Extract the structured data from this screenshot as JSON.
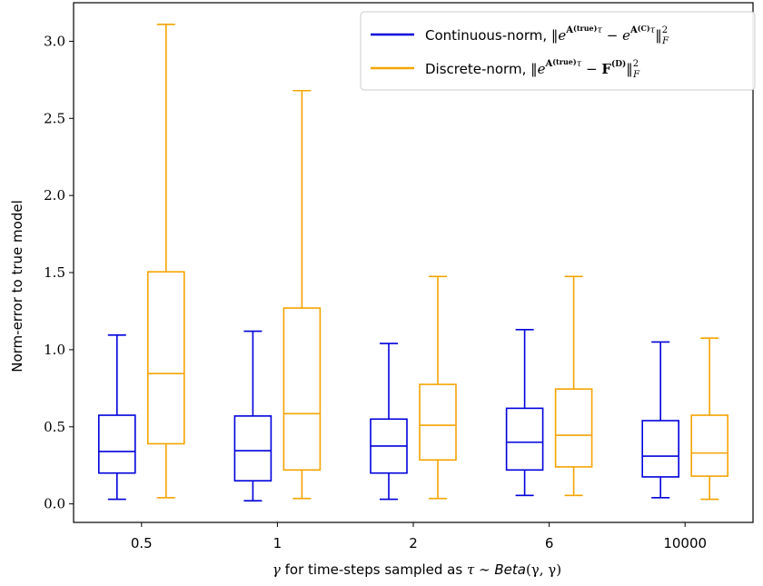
{
  "chart_data": {
    "type": "box",
    "categories": [
      "0.5",
      "1",
      "2",
      "6",
      "10000"
    ],
    "xlabel_prefix": "γ",
    "xlabel_text": " for time-steps sampled as ",
    "xlabel_math": "τ ∼ ",
    "xlabel_beta": "Beta",
    "xlabel_args": "(γ, γ)",
    "ylabel": "Norm-error to true model",
    "ylim": [
      -0.12,
      3.25
    ],
    "yticks": [
      0.0,
      0.5,
      1.0,
      1.5,
      2.0,
      2.5,
      3.0
    ],
    "ytick_labels": [
      "0.0",
      "0.5",
      "1.0",
      "1.5",
      "2.0",
      "2.5",
      "3.0"
    ],
    "legend_position": "top-right",
    "series": [
      {
        "name": "Continuous-norm, ",
        "name_math": "‖e^{A(true)τ} − e^{A(C)τ}‖²_F",
        "color": "#0000dd",
        "boxes": [
          {
            "whislo": 0.03,
            "q1": 0.2,
            "med": 0.34,
            "q3": 0.575,
            "whishi": 1.095
          },
          {
            "whislo": 0.02,
            "q1": 0.15,
            "med": 0.345,
            "q3": 0.57,
            "whishi": 1.12
          },
          {
            "whislo": 0.03,
            "q1": 0.2,
            "med": 0.375,
            "q3": 0.55,
            "whishi": 1.04
          },
          {
            "whislo": 0.055,
            "q1": 0.22,
            "med": 0.4,
            "q3": 0.62,
            "whishi": 1.13
          },
          {
            "whislo": 0.04,
            "q1": 0.175,
            "med": 0.31,
            "q3": 0.54,
            "whishi": 1.05
          }
        ]
      },
      {
        "name": "Discrete-norm, ",
        "name_math": "‖e^{A(true)τ} − F(D)‖²_F",
        "color": "#f5a300",
        "boxes": [
          {
            "whislo": 0.04,
            "q1": 0.39,
            "med": 0.845,
            "q3": 1.505,
            "whishi": 3.11
          },
          {
            "whislo": 0.035,
            "q1": 0.22,
            "med": 0.585,
            "q3": 1.27,
            "whishi": 2.68
          },
          {
            "whislo": 0.035,
            "q1": 0.285,
            "med": 0.51,
            "q3": 0.775,
            "whishi": 1.475
          },
          {
            "whislo": 0.055,
            "q1": 0.24,
            "med": 0.445,
            "q3": 0.745,
            "whishi": 1.475
          },
          {
            "whislo": 0.03,
            "q1": 0.18,
            "med": 0.33,
            "q3": 0.575,
            "whishi": 1.075
          }
        ]
      }
    ]
  }
}
